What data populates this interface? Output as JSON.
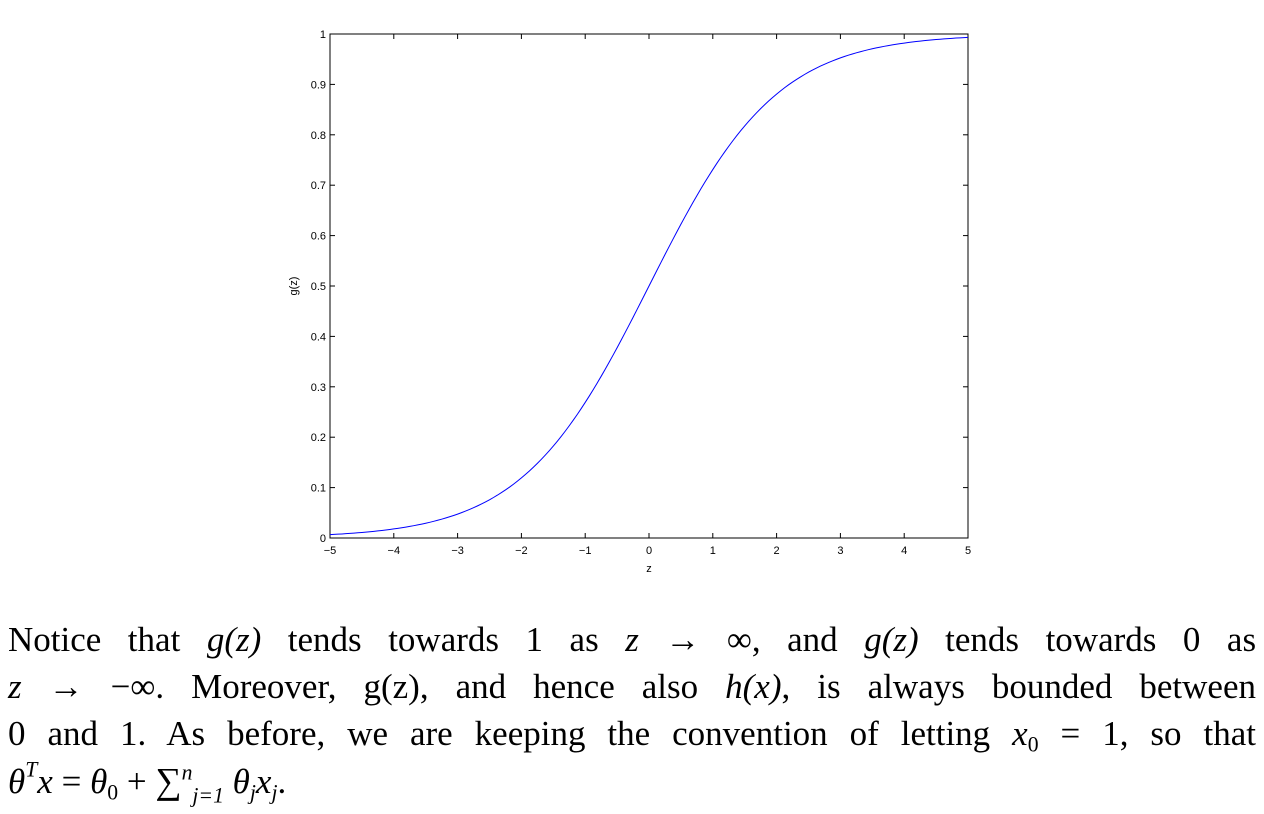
{
  "chart_data": {
    "type": "line",
    "function": "logistic",
    "x": [
      -5,
      -4.5,
      -4,
      -3.5,
      -3,
      -2.5,
      -2,
      -1.5,
      -1,
      -0.5,
      0,
      0.5,
      1,
      1.5,
      2,
      2.5,
      3,
      3.5,
      4,
      4.5,
      5
    ],
    "y": [
      0.0067,
      0.011,
      0.018,
      0.0293,
      0.0474,
      0.0759,
      0.1192,
      0.1824,
      0.2689,
      0.3775,
      0.5,
      0.6225,
      0.7311,
      0.8176,
      0.8808,
      0.9241,
      0.9526,
      0.9707,
      0.982,
      0.989,
      0.9933
    ],
    "xlabel": "z",
    "ylabel": "g(z)",
    "xlim": [
      -5,
      5
    ],
    "ylim": [
      0,
      1
    ],
    "xticks": [
      "−5",
      "−4",
      "−3",
      "−2",
      "−1",
      "0",
      "1",
      "2",
      "3",
      "4",
      "5"
    ],
    "yticks": [
      "0",
      "0.1",
      "0.2",
      "0.3",
      "0.4",
      "0.5",
      "0.6",
      "0.7",
      "0.8",
      "0.9",
      "1"
    ],
    "grid": false,
    "line_color": "#0000ff"
  },
  "paragraph": {
    "l1_a": "Notice that",
    "l1_g1": "g",
    "l1_z1": "(z)",
    "l1_b": "tends towards 1 as",
    "l1_z2": "z",
    "l1_arrow": "→ ∞",
    "l1_c": ", and",
    "l1_g2": "g",
    "l1_z3": "(z)",
    "l1_d": "tends towards 0 as",
    "l2_z": "z",
    "l2_arrow": "→ −∞",
    "l2_a": ". Moreover, g(z), and hence also",
    "l2_h": "h",
    "l2_x": "(x)",
    "l2_b": ", is always bounded between",
    "l3_a": "0 and 1. As before, we are keeping the convention of letting",
    "l3_x0": "x",
    "l3_sub0": "0",
    "l3_eq": "= 1, so that",
    "l4_theta": "θ",
    "l4_T": "T",
    "l4_x": "x",
    "l4_eq": "=",
    "l4_theta0": "θ",
    "l4_sub0": "0",
    "l4_plus": "+",
    "l4_sum": "∑",
    "l4_sup_n": "n",
    "l4_sub_j1": "j=1",
    "l4_thetaj": "θ",
    "l4_subj": "j",
    "l4_xj": "x",
    "l4_subj2": "j",
    "l4_end": "."
  }
}
